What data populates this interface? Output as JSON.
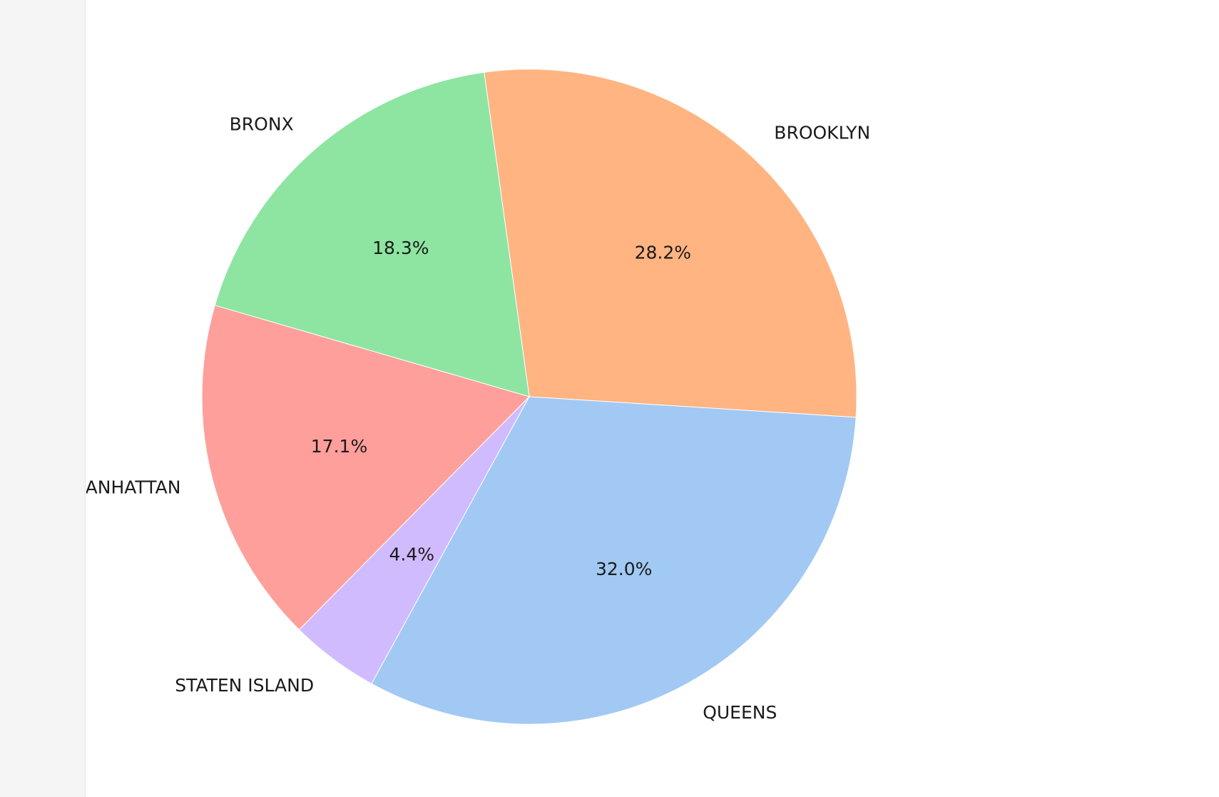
{
  "chart_data": {
    "type": "pie",
    "title": "",
    "categories": [
      "BROOKLYN",
      "BRONX",
      "MANHATTAN",
      "STATEN ISLAND",
      "QUEENS"
    ],
    "values": [
      28.2,
      18.3,
      17.1,
      4.4,
      32.0
    ],
    "value_labels": [
      "28.2%",
      "18.3%",
      "17.1%",
      "4.4%",
      "32.0%"
    ],
    "colors": [
      "#ffb482",
      "#8de5a1",
      "#ff9f9b",
      "#d0bbff",
      "#a1c9f4"
    ],
    "start_angle_deg": -3.6,
    "direction": "counterclockwise",
    "legend": "none"
  }
}
